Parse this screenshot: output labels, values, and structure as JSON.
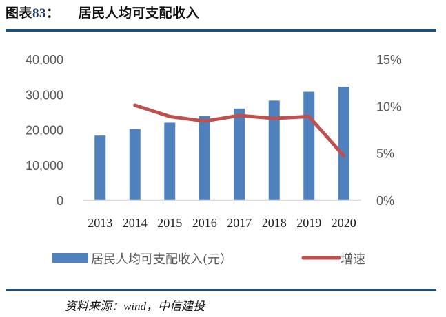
{
  "header": {
    "figure_label": "图表",
    "figure_number": "83",
    "separator": "：",
    "title": "居民人均可支配收入"
  },
  "footer": {
    "source": "资料来源：wind，中信建投"
  },
  "colors": {
    "bar": "#4f81bd",
    "line": "#c0504d",
    "rule": "#1f4e79",
    "axis_text": "#595959",
    "baseline": "#d9d9d9"
  },
  "chart_data": {
    "type": "bar+line",
    "title": "居民人均可支配收入",
    "categories": [
      "2013",
      "2014",
      "2015",
      "2016",
      "2017",
      "2018",
      "2019",
      "2020"
    ],
    "series": [
      {
        "name": "居民人均可支配收入(元）",
        "type": "bar",
        "axis": "left",
        "values": [
          18311,
          20167,
          21966,
          23821,
          25974,
          28228,
          30733,
          32189
        ]
      },
      {
        "name": "增速",
        "type": "line",
        "axis": "right",
        "values": [
          null,
          10.1,
          8.9,
          8.4,
          9.0,
          8.7,
          8.9,
          4.7
        ]
      }
    ],
    "left_axis": {
      "ylim": [
        0,
        40000
      ],
      "ticks": [
        "0",
        "10,000",
        "20,000",
        "30,000",
        "40,000"
      ]
    },
    "right_axis": {
      "ylim": [
        0,
        15
      ],
      "ticks": [
        "0%",
        "5%",
        "10%",
        "15%"
      ]
    },
    "grid": false,
    "legend_position": "bottom",
    "xlabel": "",
    "ylabel": ""
  }
}
